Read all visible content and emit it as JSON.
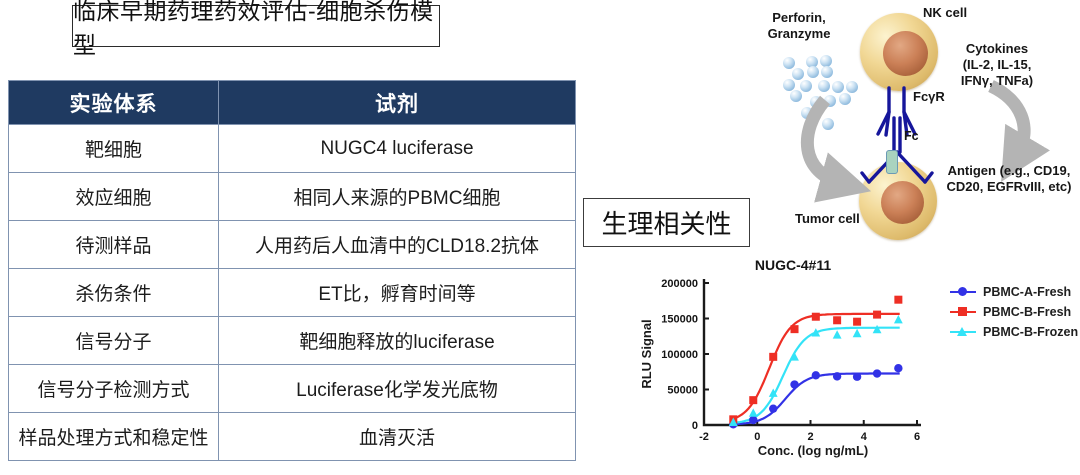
{
  "title": "临床早期药理药效评估-细胞杀伤模型",
  "physio_label": "生理相关性",
  "table": {
    "headers": [
      "实验体系",
      "试剂"
    ],
    "rows": [
      [
        "靶细胞",
        "NUGC4 luciferase"
      ],
      [
        "效应细胞",
        "相同人来源的PBMC细胞"
      ],
      [
        "待测样品",
        "人用药后人血清中的CLD18.2抗体"
      ],
      [
        "杀伤条件",
        "ET比，孵育时间等"
      ],
      [
        "信号分子",
        "靶细胞释放的luciferase"
      ],
      [
        "信号分子检测方式",
        "Luciferase化学发光底物"
      ],
      [
        "样品处理方式和稳定性",
        "血清灭活"
      ]
    ],
    "header_bg": "#1f3a61",
    "border_color": "#8093b0"
  },
  "diagram": {
    "labels": {
      "perforin_line1": "Perforin,",
      "perforin_line2": "Granzyme",
      "nk_cell": "NK cell",
      "cytokines_line1": "Cytokines",
      "cytokines_line2": "(IL-2, IL-15,",
      "cytokines_line3": "IFNγ, TNFa)",
      "fcyr": "FcγR",
      "fc": "Fc",
      "antigen_line1": "Antigen (e.g., CD19,",
      "antigen_line2": "CD20, EGFRvIII, etc)",
      "tumor_cell": "Tumor cell"
    },
    "colors": {
      "antibody": "#16169b",
      "arrow": "#b4b4b4",
      "cell_body": "#f1d794",
      "nucleus": "#b5623f",
      "antigen": "#a9d3bf",
      "granule": "#8fbbde"
    }
  },
  "chart_data": {
    "type": "line",
    "title": "NUGC-4#11",
    "xlabel": "Conc. (log ng/mL)",
    "ylabel": "RLU Signal",
    "xlim": [
      -2,
      6
    ],
    "ylim": [
      0,
      200000
    ],
    "xticks": [
      -2,
      0,
      2,
      4,
      6
    ],
    "yticks": [
      0,
      50000,
      100000,
      150000,
      200000
    ],
    "grid": false,
    "legend_position": "right",
    "x": [
      -0.9,
      -0.15,
      0.6,
      1.4,
      2.2,
      3.0,
      3.75,
      4.5,
      5.3
    ],
    "series": [
      {
        "name": "PBMC-A-Fresh",
        "color": "#3232e6",
        "marker": "circle",
        "values": [
          1000,
          7000,
          23000,
          57000,
          70000,
          68500,
          68000,
          72500,
          80000
        ],
        "fit": {
          "bottom": 500,
          "top": 72500,
          "logec50": 1.05,
          "hill": 1.05
        }
      },
      {
        "name": "PBMC-B-Fresh",
        "color": "#ee2e24",
        "marker": "square",
        "values": [
          8000,
          35000,
          96000,
          135000,
          152500,
          147500,
          145500,
          155500,
          176500
        ],
        "fit": {
          "bottom": 3000,
          "top": 156500,
          "logec50": 0.45,
          "hill": 1.05
        }
      },
      {
        "name": "PBMC-B-Frozen",
        "color": "#33e3f7",
        "marker": "triangle",
        "values": [
          4000,
          17000,
          45000,
          96000,
          130000,
          127000,
          129000,
          134500,
          148500
        ],
        "fit": {
          "bottom": 1500,
          "top": 137000,
          "logec50": 0.97,
          "hill": 1.05
        }
      }
    ]
  }
}
